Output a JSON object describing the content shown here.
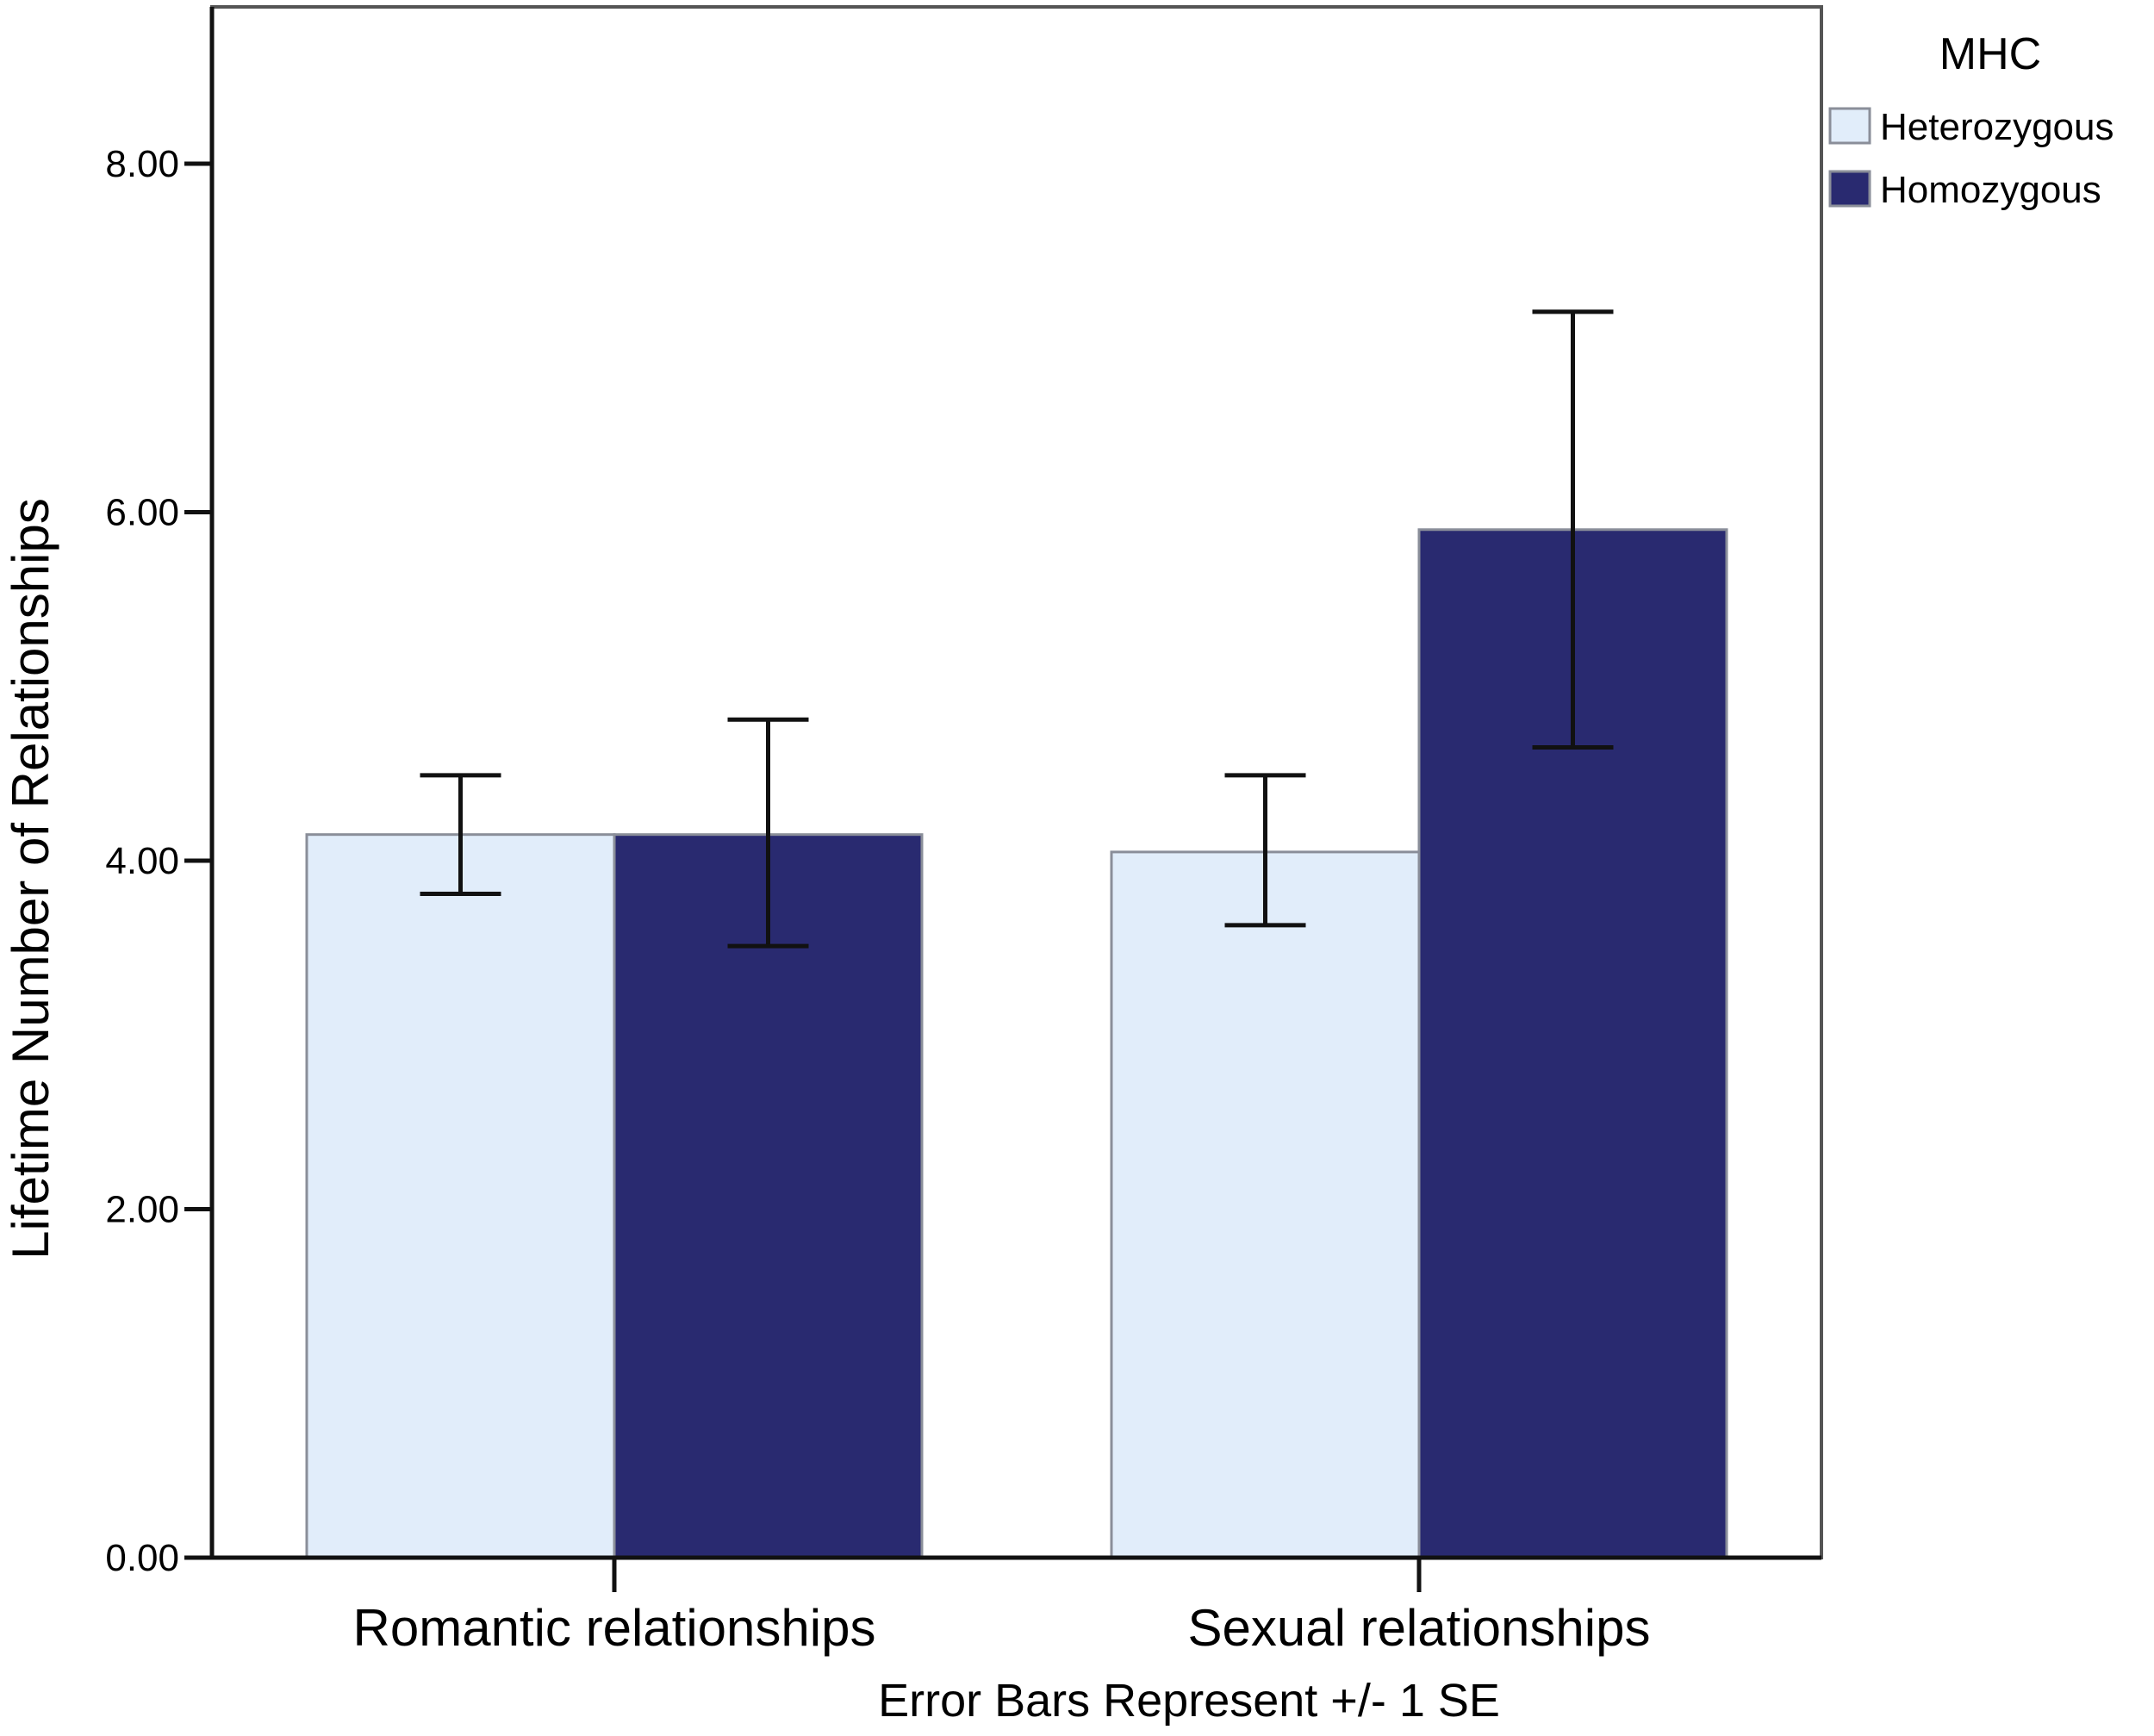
{
  "chart_data": {
    "type": "bar",
    "title": "",
    "xlabel": "",
    "ylabel": "Lifetime Number of Relationships",
    "categories": [
      "Romantic relationships",
      "Sexual relationships"
    ],
    "series": [
      {
        "name": "Heterozygous",
        "color": "#e1edfa",
        "values": [
          4.15,
          4.05
        ],
        "error_low": [
          3.81,
          3.63
        ],
        "error_high": [
          4.49,
          4.49
        ]
      },
      {
        "name": "Homozygous",
        "color": "#292a70",
        "values": [
          4.15,
          5.9
        ],
        "error_low": [
          3.51,
          4.65
        ],
        "error_high": [
          4.81,
          7.15
        ]
      }
    ],
    "ylim": [
      0,
      8.9
    ],
    "yticks": [
      0,
      2,
      4,
      6,
      8
    ],
    "ytick_labels": [
      "0.00",
      "2.00",
      "4.00",
      "6.00",
      "8.00"
    ],
    "grid": false,
    "legend": {
      "title": "MHC",
      "position": "top-right",
      "entries": [
        "Heterozygous",
        "Homozygous"
      ]
    },
    "footnote": "Error Bars Represent +/- 1 SE"
  }
}
